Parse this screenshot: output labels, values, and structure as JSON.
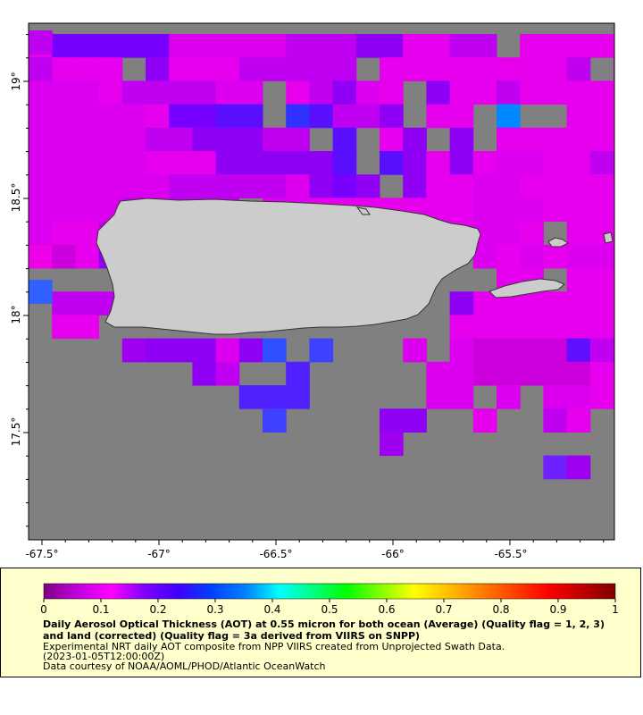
{
  "map": {
    "background_color": "#808080",
    "land_color": "#cccccc",
    "x_ticks": [
      "-67.5°",
      "-67°",
      "-66.5°",
      "-66°",
      "-65.5°"
    ],
    "y_ticks": [
      "19°",
      "18.5°",
      "18°",
      "17.5°"
    ],
    "lon_range": [
      -67.55,
      -65.05
    ],
    "lat_range": [
      17.05,
      19.25
    ],
    "grid_step_deg": 0.1,
    "aot_grid_note": "rows from north (top) to south; each char one 0.1° cell; '.'=no data; 0-9 AOT tenths (0=0.05, 1=0.15, 2=0.25...); letters m/p/v = magenta/pink/violet bands"
  },
  "colorbar": {
    "tick_labels": [
      "0",
      "0.1",
      "0.2",
      "0.3",
      "0.4",
      "0.5",
      "0.6",
      "0.7",
      "0.8",
      "0.9",
      "1"
    ],
    "range": [
      0,
      1
    ],
    "colors": [
      "#800080",
      "#c000e0",
      "#ff00ff",
      "#8000ff",
      "#4000ff",
      "#0040ff",
      "#0080ff",
      "#00ffff",
      "#00ff80",
      "#00ff00",
      "#80ff00",
      "#ffff00",
      "#ffc000",
      "#ff8000",
      "#ff4000",
      "#ff0000",
      "#c00000",
      "#800000"
    ]
  },
  "legend": {
    "title": "Daily Aerosol Optical Thickness (AOT) at 0.55 micron for both ocean (Average) (Quality flag = 1, 2, 3) and land (corrected) (Quality flag = 3a derived from VIIRS on SNPP)",
    "line1": "Experimental NRT daily AOT composite from NPP VIIRS created from Unprojected Swath Data.",
    "line2": "(2023-01-05T12:00:00Z)",
    "line3": "Data courtesy of NOAA/AOML/PHOD/Atlantic OceanWatch"
  }
}
